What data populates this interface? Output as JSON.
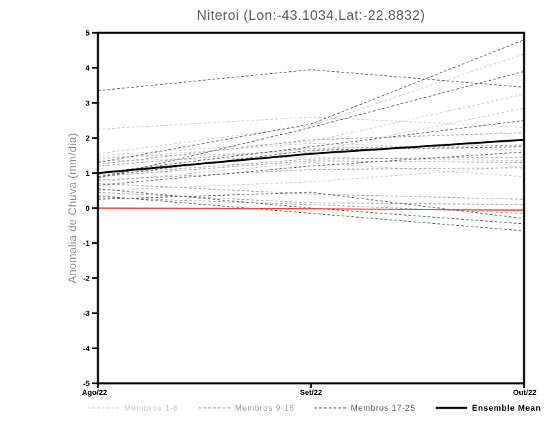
{
  "title": "Niteroi (Lon:-43.1034,Lat:-22.8832)",
  "chart_data": {
    "type": "line",
    "title": "Niteroi (Lon:-43.1034,Lat:-22.8832)",
    "xlabel": "",
    "ylabel": "Anomalia de Chuva (mm/dia)",
    "x_categories": [
      "Ago/22",
      "Set/22",
      "Out/22"
    ],
    "ylim": [
      -5,
      5
    ],
    "ytick_step": 1,
    "grid": false,
    "legend_position": "bottom",
    "frame_color": "#000000",
    "background": "#ffffff",
    "member_groups": [
      {
        "label": "Membros 1-8",
        "color": "#c9c9c9",
        "style": "dashed",
        "series": [
          [
            2.25,
            2.6,
            2.3
          ],
          [
            1.55,
            2.35,
            4.4
          ],
          [
            1.5,
            1.9,
            3.25
          ],
          [
            1.45,
            1.6,
            2.85
          ],
          [
            1.4,
            1.85,
            1.65
          ],
          [
            1.35,
            1.45,
            1.35
          ],
          [
            0.75,
            1.3,
            0.9
          ],
          [
            0.5,
            0.75,
            1.2
          ]
        ]
      },
      {
        "label": "Membros 9-16",
        "color": "#9e9e9e",
        "style": "dashed",
        "series": [
          [
            1.25,
            1.95,
            2.15
          ],
          [
            1.2,
            1.7,
            1.8
          ],
          [
            0.95,
            1.4,
            1.45
          ],
          [
            0.9,
            1.35,
            1.3
          ],
          [
            0.8,
            1.1,
            1.15
          ],
          [
            0.7,
            0.4,
            0.25
          ],
          [
            0.45,
            0.15,
            0.1
          ],
          [
            0.3,
            0.1,
            -0.15
          ]
        ]
      },
      {
        "label": "Membros 17-25",
        "color": "#5d5d5d",
        "style": "dashed",
        "series": [
          [
            3.35,
            3.95,
            3.45
          ],
          [
            1.3,
            2.4,
            4.8
          ],
          [
            0.85,
            2.3,
            3.9
          ],
          [
            1.0,
            1.75,
            2.5
          ],
          [
            0.9,
            1.65,
            1.75
          ],
          [
            0.65,
            1.2,
            1.6
          ],
          [
            0.55,
            0.0,
            -0.45
          ],
          [
            0.35,
            -0.15,
            -0.65
          ],
          [
            0.25,
            0.45,
            -0.3
          ]
        ]
      }
    ],
    "ensemble_mean": {
      "label": "Ensemble Mean",
      "color": "#000000",
      "style": "solid",
      "values": [
        1.0,
        1.55,
        1.95
      ]
    },
    "zero_reference_line": {
      "color": "#f54338",
      "values": [
        0.0,
        -0.02,
        -0.06
      ]
    },
    "legend": [
      {
        "label": "Membros 1-8",
        "color": "#c9c9c9",
        "style": "dashed"
      },
      {
        "label": "Membros 9-16",
        "color": "#9e9e9e",
        "style": "dashed"
      },
      {
        "label": "Membros 17-25",
        "color": "#5d5d5d",
        "style": "dashed"
      },
      {
        "label": "Ensemble Mean",
        "color": "#000000",
        "style": "solid"
      }
    ]
  }
}
